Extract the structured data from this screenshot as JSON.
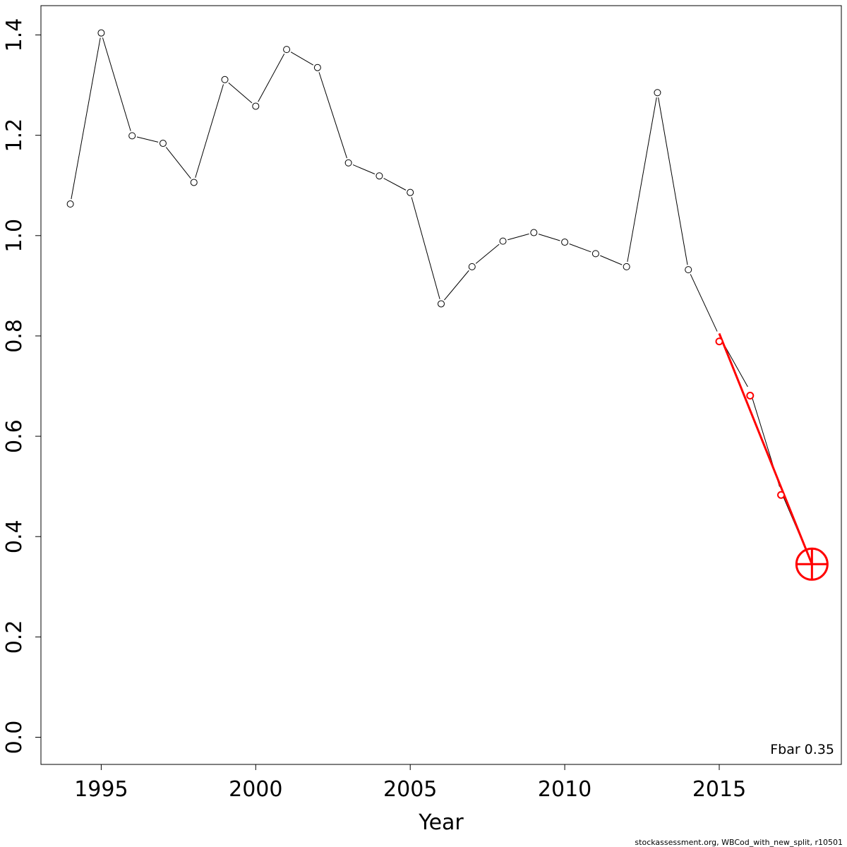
{
  "chart_data": {
    "type": "line",
    "title": "",
    "xlabel": "Year",
    "ylabel": "",
    "xlim": [
      1993.0,
      2018.9
    ],
    "ylim": [
      -0.11,
      1.46
    ],
    "x_ticks": [
      1995,
      2000,
      2005,
      2010,
      2015
    ],
    "y_ticks": [
      0.0,
      0.2,
      0.4,
      0.6,
      0.8,
      1.0,
      1.2,
      1.4
    ],
    "y_tick_labels": [
      "0.0",
      "0.2",
      "0.4",
      "0.6",
      "0.8",
      "1.0",
      "1.2",
      "1.4"
    ],
    "grid": false,
    "series": [
      {
        "color": "#000000",
        "x": [
          1994,
          1995,
          1996,
          1997,
          1998,
          1999,
          2000,
          2001,
          2002,
          2003,
          2004,
          2005,
          2006,
          2007,
          2008,
          2009,
          2010,
          2011,
          2012,
          2013,
          2014,
          2015,
          2016,
          2017,
          2018
        ],
        "y": [
          1.063,
          1.404,
          1.199,
          1.184,
          1.106,
          1.311,
          1.258,
          1.371,
          1.335,
          1.145,
          1.119,
          1.086,
          0.864,
          0.938,
          0.989,
          1.006,
          0.987,
          0.964,
          0.938,
          1.285,
          0.932,
          0.8,
          0.69,
          0.49,
          0.345
        ],
        "markers_upto": 2014
      },
      {
        "color": "#ff0000",
        "x": [
          2015,
          2016,
          2017
        ],
        "y": [
          0.789,
          0.681,
          0.483
        ],
        "markers": "circle"
      },
      {
        "color": "#ff0000",
        "type": "regression-line",
        "x": [
          2015,
          2018
        ],
        "y": [
          0.805,
          0.345
        ]
      },
      {
        "color": "#ff0000",
        "type": "target-marker",
        "x": [
          2018
        ],
        "y": [
          0.345
        ]
      }
    ],
    "annotation": "Fbar 0.35"
  },
  "credit": "stockassessment.org, WBCod_with_new_split, r10501"
}
